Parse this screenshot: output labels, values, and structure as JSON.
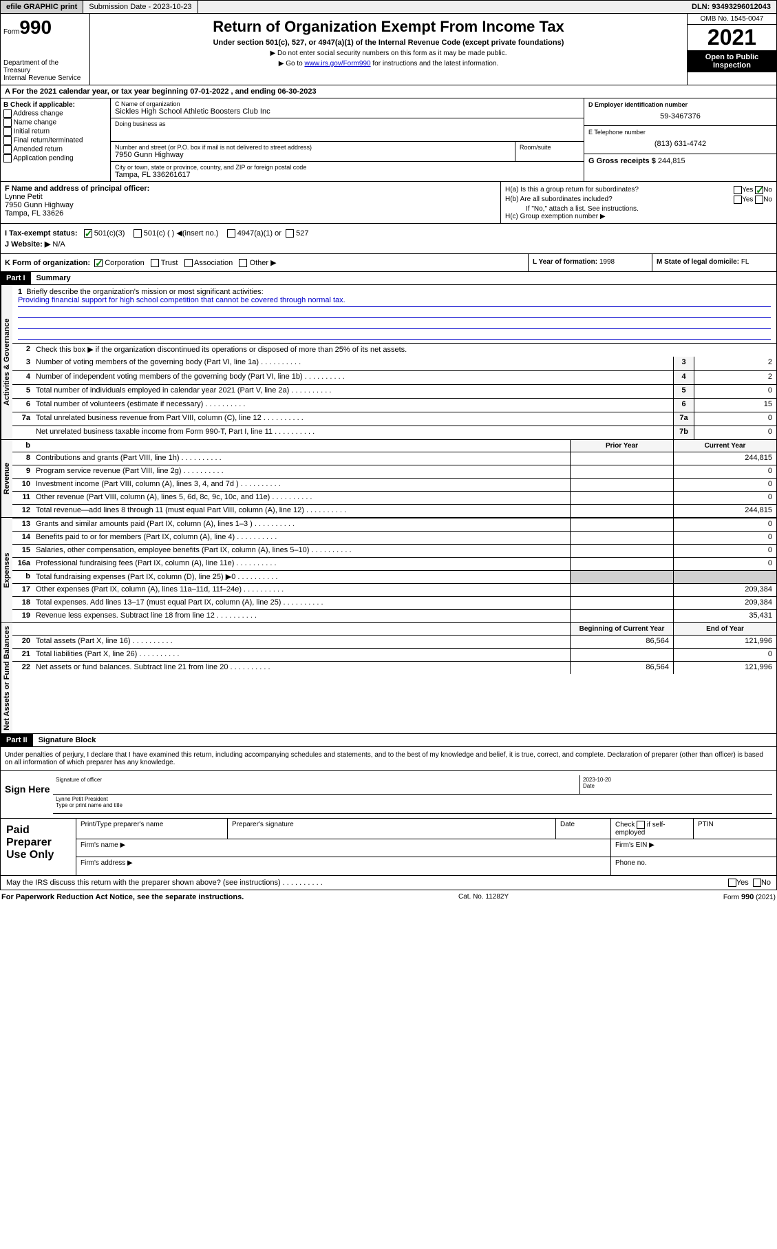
{
  "top": {
    "efile": "efile GRAPHIC print",
    "sub_label": "Submission Date - 2023-10-23",
    "dln": "DLN: 93493296012043"
  },
  "header": {
    "form_word": "Form",
    "form_num": "990",
    "dept": "Department of the Treasury",
    "irs": "Internal Revenue Service",
    "title": "Return of Organization Exempt From Income Tax",
    "subtitle": "Under section 501(c), 527, or 4947(a)(1) of the Internal Revenue Code (except private foundations)",
    "note1": "▶ Do not enter social security numbers on this form as it may be made public.",
    "note2_pre": "▶ Go to ",
    "note2_link": "www.irs.gov/Form990",
    "note2_post": " for instructions and the latest information.",
    "omb": "OMB No. 1545-0047",
    "year": "2021",
    "open": "Open to Public Inspection"
  },
  "rowA": "A For the 2021 calendar year, or tax year beginning 07-01-2022   , and ending 06-30-2023",
  "boxB": {
    "title": "B Check if applicable:",
    "opts": [
      "Address change",
      "Name change",
      "Initial return",
      "Final return/terminated",
      "Amended return",
      "Application pending"
    ]
  },
  "boxC": {
    "name_label": "C Name of organization",
    "name": "Sickles High School Athletic Boosters Club Inc",
    "dba_label": "Doing business as",
    "street_label": "Number and street (or P.O. box if mail is not delivered to street address)",
    "street": "7950 Gunn Highway",
    "suite_label": "Room/suite",
    "city_label": "City or town, state or province, country, and ZIP or foreign postal code",
    "city": "Tampa, FL  336261617"
  },
  "boxD": {
    "label": "D Employer identification number",
    "val": "59-3467376"
  },
  "boxE": {
    "label": "E Telephone number",
    "val": "(813) 631-4742"
  },
  "boxG": {
    "label": "G Gross receipts $",
    "val": "244,815"
  },
  "boxF": {
    "label": "F Name and address of principal officer:",
    "name": "Lynne Petit",
    "street": "7950 Gunn Highway",
    "city": "Tampa, FL  33626"
  },
  "boxH": {
    "ha": "H(a)  Is this a group return for subordinates?",
    "hb": "H(b)  Are all subordinates included?",
    "hb_note": "If \"No,\" attach a list. See instructions.",
    "hc": "H(c)  Group exemption number ▶",
    "yes": "Yes",
    "no": "No"
  },
  "boxI": {
    "label": "I   Tax-exempt status:",
    "o1": "501(c)(3)",
    "o2": "501(c) (  ) ◀(insert no.)",
    "o3": "4947(a)(1) or",
    "o4": "527"
  },
  "boxJ": {
    "label": "J   Website: ▶",
    "val": "N/A"
  },
  "boxK": {
    "label": "K Form of organization:",
    "o1": "Corporation",
    "o2": "Trust",
    "o3": "Association",
    "o4": "Other ▶"
  },
  "boxL": {
    "label": "L Year of formation:",
    "val": "1998"
  },
  "boxM": {
    "label": "M State of legal domicile:",
    "val": "FL"
  },
  "part1": {
    "header": "Part I",
    "title": "Summary"
  },
  "summary": {
    "q1": "Briefly describe the organization's mission or most significant activities:",
    "mission": "Providing financial support for high school competition that cannot be covered through normal tax.",
    "q2": "Check this box ▶     if the organization discontinued its operations or disposed of more than 25% of its net assets.",
    "lines_gov": [
      {
        "n": "3",
        "t": "Number of voting members of the governing body (Part VI, line 1a)",
        "box": "3",
        "v": "2"
      },
      {
        "n": "4",
        "t": "Number of independent voting members of the governing body (Part VI, line 1b)",
        "box": "4",
        "v": "2"
      },
      {
        "n": "5",
        "t": "Total number of individuals employed in calendar year 2021 (Part V, line 2a)",
        "box": "5",
        "v": "0"
      },
      {
        "n": "6",
        "t": "Total number of volunteers (estimate if necessary)",
        "box": "6",
        "v": "15"
      },
      {
        "n": "7a",
        "t": "Total unrelated business revenue from Part VIII, column (C), line 12",
        "box": "7a",
        "v": "0"
      },
      {
        "n": "",
        "t": "Net unrelated business taxable income from Form 990-T, Part I, line 11",
        "box": "7b",
        "v": "0"
      }
    ],
    "col_prior": "Prior Year",
    "col_current": "Current Year",
    "col_begin": "Beginning of Current Year",
    "col_end": "End of Year",
    "rev": [
      {
        "n": "8",
        "t": "Contributions and grants (Part VIII, line 1h)",
        "pv": "",
        "cv": "244,815"
      },
      {
        "n": "9",
        "t": "Program service revenue (Part VIII, line 2g)",
        "pv": "",
        "cv": "0"
      },
      {
        "n": "10",
        "t": "Investment income (Part VIII, column (A), lines 3, 4, and 7d )",
        "pv": "",
        "cv": "0"
      },
      {
        "n": "11",
        "t": "Other revenue (Part VIII, column (A), lines 5, 6d, 8c, 9c, 10c, and 11e)",
        "pv": "",
        "cv": "0"
      },
      {
        "n": "12",
        "t": "Total revenue—add lines 8 through 11 (must equal Part VIII, column (A), line 12)",
        "pv": "",
        "cv": "244,815"
      }
    ],
    "exp": [
      {
        "n": "13",
        "t": "Grants and similar amounts paid (Part IX, column (A), lines 1–3 )",
        "pv": "",
        "cv": "0"
      },
      {
        "n": "14",
        "t": "Benefits paid to or for members (Part IX, column (A), line 4)",
        "pv": "",
        "cv": "0"
      },
      {
        "n": "15",
        "t": "Salaries, other compensation, employee benefits (Part IX, column (A), lines 5–10)",
        "pv": "",
        "cv": "0"
      },
      {
        "n": "16a",
        "t": "Professional fundraising fees (Part IX, column (A), line 11e)",
        "pv": "",
        "cv": "0"
      },
      {
        "n": "b",
        "t": "Total fundraising expenses (Part IX, column (D), line 25) ▶0",
        "pv": "shaded",
        "cv": "shaded"
      },
      {
        "n": "17",
        "t": "Other expenses (Part IX, column (A), lines 11a–11d, 11f–24e)",
        "pv": "",
        "cv": "209,384"
      },
      {
        "n": "18",
        "t": "Total expenses. Add lines 13–17 (must equal Part IX, column (A), line 25)",
        "pv": "",
        "cv": "209,384"
      },
      {
        "n": "19",
        "t": "Revenue less expenses. Subtract line 18 from line 12",
        "pv": "",
        "cv": "35,431"
      }
    ],
    "net": [
      {
        "n": "20",
        "t": "Total assets (Part X, line 16)",
        "pv": "86,564",
        "cv": "121,996"
      },
      {
        "n": "21",
        "t": "Total liabilities (Part X, line 26)",
        "pv": "",
        "cv": "0"
      },
      {
        "n": "22",
        "t": "Net assets or fund balances. Subtract line 21 from line 20",
        "pv": "86,564",
        "cv": "121,996"
      }
    ],
    "vert_gov": "Activities & Governance",
    "vert_rev": "Revenue",
    "vert_exp": "Expenses",
    "vert_net": "Net Assets or Fund Balances"
  },
  "part2": {
    "header": "Part II",
    "title": "Signature Block"
  },
  "sig": {
    "perjury": "Under penalties of perjury, I declare that I have examined this return, including accompanying schedules and statements, and to the best of my knowledge and belief, it is true, correct, and complete. Declaration of preparer (other than officer) is based on all information of which preparer has any knowledge.",
    "sign_here": "Sign Here",
    "sig_label": "Signature of officer",
    "date_label": "Date",
    "date_val": "2023-10-20",
    "name_title": "Lynne Petit President",
    "name_label": "Type or print name and title"
  },
  "paid": {
    "title": "Paid Preparer Use Only",
    "h1": "Print/Type preparer's name",
    "h2": "Preparer's signature",
    "h3": "Date",
    "h4_pre": "Check",
    "h4_post": "if self-employed",
    "h5": "PTIN",
    "firm_name": "Firm's name  ▶",
    "firm_ein": "Firm's EIN ▶",
    "firm_addr": "Firm's address ▶",
    "phone": "Phone no."
  },
  "discuss": {
    "text": "May the IRS discuss this return with the preparer shown above? (see instructions)",
    "yes": "Yes",
    "no": "No"
  },
  "footer": {
    "left": "For Paperwork Reduction Act Notice, see the separate instructions.",
    "mid": "Cat. No. 11282Y",
    "right_pre": "Form ",
    "right_b": "990",
    "right_post": " (2021)"
  }
}
